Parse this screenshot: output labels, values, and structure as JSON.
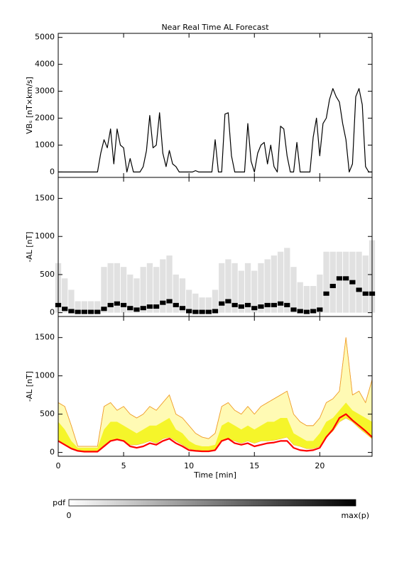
{
  "chart_data": [
    {
      "type": "line",
      "title": "Near Real Time AL Forecast",
      "ylabel": "VBₛ [nT×km/s]",
      "xlim": [
        0,
        24
      ],
      "xticks": [
        0,
        5,
        10,
        15,
        20
      ],
      "xtick_labels": false,
      "ylim": [
        -200,
        5150
      ],
      "yticks": [
        0,
        1000,
        2000,
        3000,
        4000,
        5000
      ],
      "x": [
        0,
        0.25,
        0.5,
        0.75,
        1,
        1.25,
        1.5,
        1.75,
        2,
        2.25,
        2.5,
        2.75,
        3,
        3.25,
        3.5,
        3.75,
        4,
        4.25,
        4.5,
        4.75,
        5,
        5.25,
        5.5,
        5.75,
        6,
        6.25,
        6.5,
        6.75,
        7,
        7.25,
        7.5,
        7.75,
        8,
        8.25,
        8.5,
        8.75,
        9,
        9.25,
        9.5,
        9.75,
        10,
        10.25,
        10.5,
        10.75,
        11,
        11.25,
        11.5,
        11.75,
        12,
        12.25,
        12.5,
        12.75,
        13,
        13.25,
        13.5,
        13.75,
        14,
        14.25,
        14.5,
        14.75,
        15,
        15.25,
        15.5,
        15.75,
        16,
        16.25,
        16.5,
        16.75,
        17,
        17.25,
        17.5,
        17.75,
        18,
        18.25,
        18.5,
        18.75,
        19,
        19.25,
        19.5,
        19.75,
        20,
        20.25,
        20.5,
        20.75,
        21,
        21.25,
        21.5,
        21.75,
        22,
        22.25,
        22.5,
        22.75,
        23,
        23.25,
        23.5,
        23.75,
        24
      ],
      "series": [
        {
          "color": "#000000",
          "values": [
            0,
            0,
            0,
            0,
            0,
            0,
            0,
            0,
            0,
            0,
            0,
            0,
            0,
            700,
            1200,
            900,
            1600,
            300,
            1600,
            1000,
            900,
            0,
            500,
            0,
            0,
            0,
            200,
            800,
            2100,
            900,
            1000,
            2200,
            700,
            200,
            800,
            300,
            200,
            0,
            0,
            0,
            0,
            0,
            50,
            0,
            0,
            0,
            0,
            0,
            1200,
            0,
            0,
            2150,
            2200,
            600,
            0,
            0,
            0,
            0,
            1800,
            400,
            0,
            700,
            1000,
            1100,
            300,
            1000,
            200,
            0,
            1700,
            1600,
            600,
            0,
            0,
            1100,
            0,
            0,
            0,
            0,
            1300,
            2000,
            600,
            1800,
            2000,
            2700,
            3100,
            2800,
            2600,
            1800,
            1200,
            0,
            300,
            2800,
            3100,
            2500,
            200,
            0,
            0
          ]
        }
      ]
    },
    {
      "type": "heatmap",
      "ylabel": "-AL [nT]",
      "xlim": [
        0,
        24
      ],
      "xticks": [
        0,
        5,
        10,
        15,
        20
      ],
      "xtick_labels": false,
      "ylim": [
        -50,
        1775
      ],
      "yticks": [
        0,
        500,
        1000,
        1500
      ],
      "x": [
        0,
        0.5,
        1,
        1.5,
        2,
        2.5,
        3,
        3.5,
        4,
        4.5,
        5,
        5.5,
        6,
        6.5,
        7,
        7.5,
        8,
        8.5,
        9,
        9.5,
        10,
        10.5,
        11,
        11.5,
        12,
        12.5,
        13,
        13.5,
        14,
        14.5,
        15,
        15.5,
        16,
        16.5,
        17,
        17.5,
        18,
        18.5,
        19,
        19.5,
        20,
        20.5,
        21,
        21.5,
        22,
        22.5,
        23,
        23.5,
        24
      ],
      "series": [
        {
          "color": "#d4d4d4",
          "values": [
            650,
            450,
            300,
            150,
            150,
            150,
            150,
            600,
            650,
            650,
            600,
            500,
            450,
            600,
            650,
            600,
            700,
            750,
            500,
            450,
            300,
            250,
            200,
            200,
            300,
            650,
            700,
            650,
            550,
            650,
            550,
            650,
            700,
            750,
            800,
            850,
            600,
            400,
            350,
            350,
            500,
            800,
            800,
            800,
            800,
            800,
            800,
            750,
            950
          ]
        },
        {
          "color": "#000000",
          "values": [
            100,
            50,
            20,
            10,
            10,
            10,
            10,
            50,
            100,
            120,
            100,
            60,
            40,
            60,
            80,
            80,
            130,
            150,
            100,
            60,
            20,
            10,
            10,
            10,
            20,
            120,
            150,
            100,
            80,
            100,
            60,
            80,
            100,
            100,
            120,
            100,
            40,
            20,
            10,
            20,
            40,
            250,
            350,
            450,
            450,
            400,
            300,
            250,
            250
          ]
        }
      ]
    },
    {
      "type": "band",
      "ylabel": "-AL [nT]",
      "xlabel": "Time [min]",
      "xlim": [
        0,
        24
      ],
      "xticks": [
        0,
        5,
        10,
        15,
        20
      ],
      "xtick_labels": true,
      "ylim": [
        -50,
        1775
      ],
      "yticks": [
        0,
        500,
        1000,
        1500
      ],
      "x": [
        0,
        0.5,
        1,
        1.5,
        2,
        2.5,
        3,
        3.5,
        4,
        4.5,
        5,
        5.5,
        6,
        6.5,
        7,
        7.5,
        8,
        8.5,
        9,
        9.5,
        10,
        10.5,
        11,
        11.5,
        12,
        12.5,
        13,
        13.5,
        14,
        14.5,
        15,
        15.5,
        16,
        16.5,
        17,
        17.5,
        18,
        18.5,
        19,
        19.5,
        20,
        20.5,
        21,
        21.5,
        22,
        22.5,
        23,
        23.5,
        24
      ],
      "series": [
        {
          "color": "#f0a030",
          "fill": "#fffab4",
          "values": [
            650,
            600,
            350,
            80,
            80,
            80,
            80,
            600,
            650,
            550,
            600,
            500,
            450,
            500,
            600,
            550,
            650,
            750,
            500,
            450,
            350,
            250,
            200,
            180,
            250,
            600,
            650,
            550,
            500,
            600,
            500,
            600,
            650,
            700,
            750,
            800,
            500,
            400,
            350,
            350,
            450,
            650,
            700,
            800,
            1500,
            750,
            800,
            650,
            950
          ]
        },
        {
          "color": "#f5f52a",
          "values": [
            400,
            300,
            150,
            60,
            60,
            60,
            60,
            300,
            400,
            400,
            350,
            300,
            250,
            300,
            350,
            350,
            400,
            450,
            300,
            250,
            150,
            100,
            80,
            80,
            100,
            350,
            400,
            350,
            300,
            350,
            300,
            350,
            400,
            400,
            450,
            450,
            250,
            200,
            150,
            150,
            250,
            400,
            450,
            550,
            650,
            550,
            500,
            450,
            400
          ]
        },
        {
          "color": "#f5f52a",
          "values": [
            150,
            100,
            50,
            20,
            20,
            20,
            20,
            100,
            150,
            180,
            150,
            100,
            100,
            120,
            150,
            120,
            180,
            200,
            150,
            100,
            50,
            30,
            20,
            20,
            30,
            150,
            180,
            150,
            120,
            150,
            120,
            150,
            150,
            160,
            180,
            200,
            100,
            80,
            50,
            50,
            80,
            200,
            280,
            400,
            450,
            400,
            320,
            250,
            180
          ]
        },
        {
          "color": "#ff0000",
          "values": [
            150,
            100,
            50,
            20,
            10,
            10,
            10,
            80,
            150,
            170,
            150,
            80,
            60,
            80,
            120,
            100,
            150,
            180,
            120,
            80,
            30,
            20,
            15,
            15,
            30,
            150,
            180,
            120,
            100,
            120,
            80,
            100,
            120,
            130,
            150,
            150,
            60,
            30,
            20,
            30,
            60,
            200,
            300,
            450,
            500,
            420,
            350,
            280,
            200
          ]
        }
      ]
    }
  ],
  "colorbar": {
    "label": "pdf",
    "min_label": "0",
    "max_label": "max(p)"
  }
}
